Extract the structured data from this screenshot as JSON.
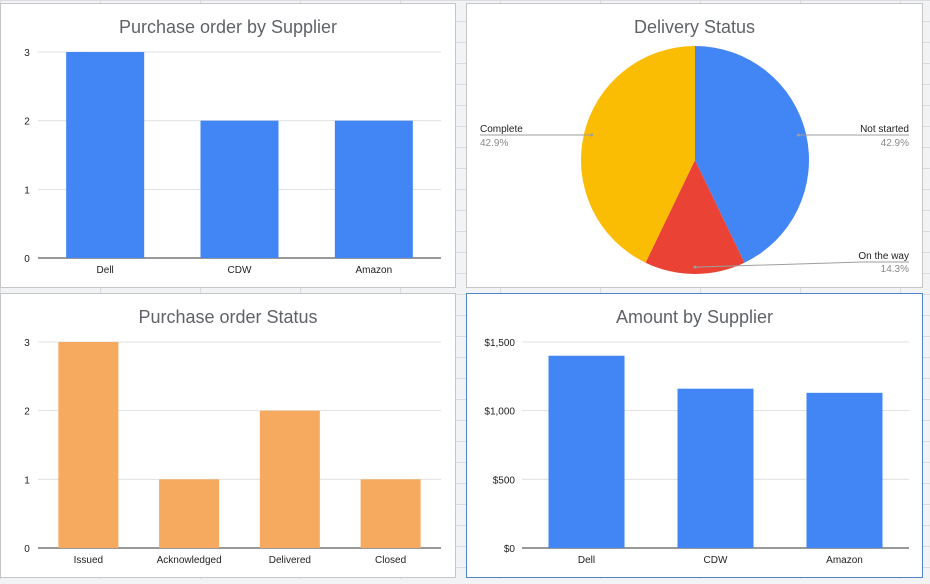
{
  "colors": {
    "blue": "#4285f4",
    "orange": "#f6aa5f",
    "red": "#ea4335",
    "yellow": "#fbbc04",
    "grid": "#e0e0e0"
  },
  "chart_data": [
    {
      "type": "bar",
      "title": "Purchase order by Supplier",
      "categories": [
        "Dell",
        "CDW",
        "Amazon"
      ],
      "values": [
        3,
        2,
        2
      ],
      "ylim": [
        0,
        3
      ],
      "yticks": [
        "0",
        "1",
        "2",
        "3"
      ],
      "grid": true,
      "color": "#4285f4"
    },
    {
      "type": "pie",
      "title": "Delivery Status",
      "slices": [
        {
          "label": "Not started",
          "pct": "42.9%",
          "value": 42.9,
          "color": "#4285f4"
        },
        {
          "label": "On the way",
          "pct": "14.3%",
          "value": 14.3,
          "color": "#ea4335"
        },
        {
          "label": "Complete",
          "pct": "42.9%",
          "value": 42.9,
          "color": "#fbbc04"
        }
      ]
    },
    {
      "type": "bar",
      "title": "Purchase order Status",
      "categories": [
        "Issued",
        "Acknowledged",
        "Delivered",
        "Closed"
      ],
      "values": [
        3,
        1,
        2,
        1
      ],
      "ylim": [
        0,
        3
      ],
      "yticks": [
        "0",
        "1",
        "2",
        "3"
      ],
      "grid": true,
      "color": "#f6aa5f"
    },
    {
      "type": "bar",
      "title": "Amount by Supplier",
      "categories": [
        "Dell",
        "CDW",
        "Amazon"
      ],
      "values": [
        1400,
        1160,
        1130
      ],
      "ylim": [
        0,
        1500
      ],
      "yticks": [
        "$0",
        "$500",
        "$1,000",
        "$1,500"
      ],
      "grid": true,
      "color": "#4285f4"
    }
  ]
}
